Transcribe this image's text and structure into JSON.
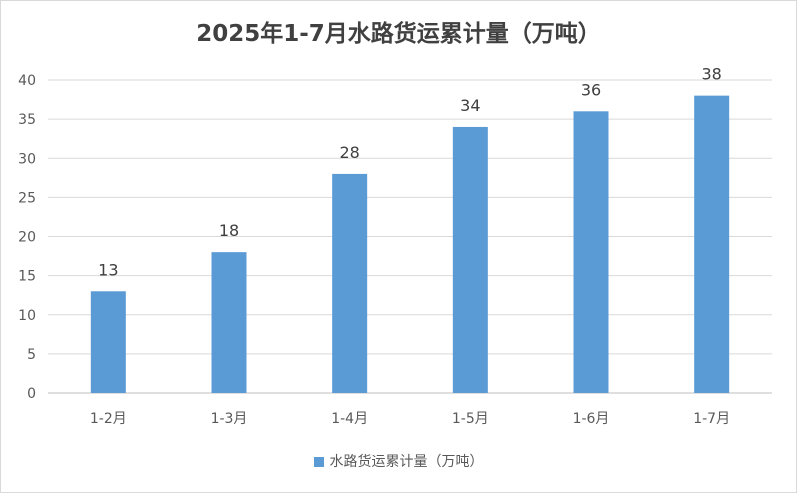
{
  "chart_data": {
    "type": "bar",
    "title": "2025年1-7月水路货运累计量（万吨）",
    "categories": [
      "1-2月",
      "1-3月",
      "1-4月",
      "1-5月",
      "1-6月",
      "1-7月"
    ],
    "series": [
      {
        "name": "水路货运累计量（万吨）",
        "values": [
          13,
          18,
          28,
          34,
          36,
          38
        ],
        "color": "#5B9BD5"
      }
    ],
    "y_ticks": [
      "0",
      "5",
      "10",
      "15",
      "20",
      "25",
      "30",
      "35",
      "40"
    ],
    "ylim": [
      0,
      40
    ],
    "grid": true,
    "legend_position": "bottom",
    "data_labels": [
      "13",
      "18",
      "28",
      "34",
      "36",
      "38"
    ]
  }
}
